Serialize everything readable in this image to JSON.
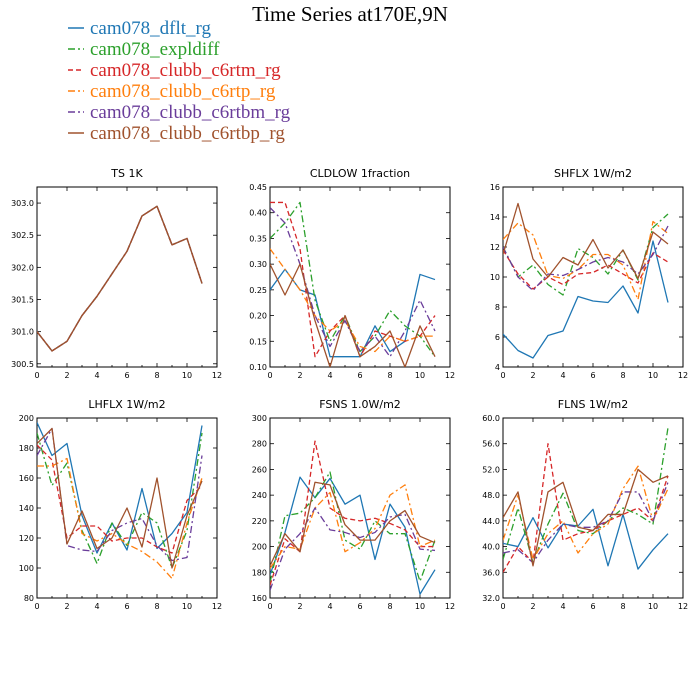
{
  "title": "Time Series at170E,9N",
  "colors": {
    "dflt": "#1f77b4",
    "expldiff": "#2ca02c",
    "c6rtm": "#d62728",
    "c6rtp": "#ff7f0e",
    "c6rtbm": "#6a3d9a",
    "c6rtbp": "#a0522d"
  },
  "legend": [
    {
      "name": "cam078_dflt_rg",
      "color": "#1f77b4",
      "dash": "solid"
    },
    {
      "name": "cam078_expldiff",
      "color": "#2ca02c",
      "dash": "dashdot"
    },
    {
      "name": "cam078_clubb_c6rtm_rg",
      "color": "#d62728",
      "dash": "dash"
    },
    {
      "name": "cam078_clubb_c6rtp_rg",
      "color": "#ff7f0e",
      "dash": "dashdot"
    },
    {
      "name": "cam078_clubb_c6rtbm_rg",
      "color": "#6a3d9a",
      "dash": "dashdot"
    },
    {
      "name": "cam078_clubb_c6rtbp_rg",
      "color": "#a0522d",
      "dash": "solid"
    }
  ],
  "chart_data": [
    {
      "type": "line",
      "title": "TS   1K",
      "x": [
        0,
        1,
        2,
        3,
        4,
        5,
        6,
        7,
        8,
        9,
        10,
        11
      ],
      "xlim": [
        0,
        12
      ],
      "xticks": [
        0,
        2,
        4,
        6,
        8,
        10,
        12
      ],
      "xtick_labels": [
        "0",
        "2",
        "4",
        "6",
        "8",
        "10",
        "12"
      ],
      "ylim": [
        300.45,
        303.25
      ],
      "yticks": [
        300.5,
        301.0,
        301.5,
        302.0,
        302.5,
        303.0
      ],
      "ytick_labels": [
        "300.5",
        "301.0",
        "301.5",
        "302.0",
        "302.5",
        "303.0"
      ],
      "series": [
        {
          "name": "cam078_dflt_rg",
          "values": [
            301.0,
            300.7,
            300.85,
            301.25,
            301.55,
            301.9,
            302.25,
            302.8,
            302.95,
            302.35,
            302.45,
            301.75
          ]
        },
        {
          "name": "cam078_expldiff",
          "values": [
            301.0,
            300.7,
            300.85,
            301.25,
            301.55,
            301.9,
            302.25,
            302.8,
            302.95,
            302.35,
            302.45,
            301.75
          ]
        },
        {
          "name": "cam078_clubb_c6rtm_rg",
          "values": [
            301.0,
            300.7,
            300.85,
            301.25,
            301.55,
            301.9,
            302.25,
            302.8,
            302.95,
            302.35,
            302.45,
            301.75
          ]
        },
        {
          "name": "cam078_clubb_c6rtp_rg",
          "values": [
            301.0,
            300.7,
            300.85,
            301.25,
            301.55,
            301.9,
            302.25,
            302.8,
            302.95,
            302.35,
            302.45,
            301.75
          ]
        },
        {
          "name": "cam078_clubb_c6rtbm_rg",
          "values": [
            301.0,
            300.7,
            300.85,
            301.25,
            301.55,
            301.9,
            302.25,
            302.8,
            302.95,
            302.35,
            302.45,
            301.75
          ]
        },
        {
          "name": "cam078_clubb_c6rtbp_rg",
          "values": [
            301.0,
            300.7,
            300.85,
            301.25,
            301.55,
            301.9,
            302.25,
            302.8,
            302.95,
            302.35,
            302.45,
            301.75
          ]
        }
      ]
    },
    {
      "type": "line",
      "title": "CLDLOW   1fraction",
      "x": [
        0,
        1,
        2,
        3,
        4,
        5,
        6,
        7,
        8,
        9,
        10,
        11
      ],
      "xlim": [
        0,
        12
      ],
      "xticks": [
        0,
        2,
        4,
        6,
        8,
        10,
        12
      ],
      "xtick_labels": [
        "0",
        "2",
        "4",
        "6",
        "8",
        "10",
        "12"
      ],
      "ylim": [
        0.1,
        0.45
      ],
      "yticks": [
        0.1,
        0.15,
        0.2,
        0.25,
        0.3,
        0.35,
        0.4,
        0.45
      ],
      "ytick_labels": [
        "0.10",
        "0.15",
        "0.20",
        "0.25",
        "0.30",
        "0.35",
        "0.40",
        "0.45"
      ],
      "series": [
        {
          "name": "cam078_dflt_rg",
          "values": [
            0.25,
            0.29,
            0.25,
            0.24,
            0.12,
            0.12,
            0.12,
            0.18,
            0.13,
            0.15,
            0.28,
            0.27
          ]
        },
        {
          "name": "cam078_expldiff",
          "values": [
            0.35,
            0.38,
            0.42,
            0.23,
            0.15,
            0.2,
            0.13,
            0.16,
            0.21,
            0.18,
            0.16,
            0.12
          ]
        },
        {
          "name": "cam078_clubb_c6rtm_rg",
          "values": [
            0.42,
            0.42,
            0.33,
            0.12,
            0.17,
            0.2,
            0.12,
            0.17,
            0.16,
            0.15,
            0.16,
            0.2
          ]
        },
        {
          "name": "cam078_clubb_c6rtp_rg",
          "values": [
            0.33,
            0.29,
            0.25,
            0.2,
            0.17,
            0.19,
            0.14,
            0.13,
            0.16,
            0.15,
            0.16,
            0.16
          ]
        },
        {
          "name": "cam078_clubb_c6rtbm_rg",
          "values": [
            0.41,
            0.38,
            0.3,
            0.2,
            0.14,
            0.19,
            0.13,
            0.16,
            0.12,
            0.17,
            0.23,
            0.17
          ]
        },
        {
          "name": "cam078_clubb_c6rtbp_rg",
          "values": [
            0.3,
            0.24,
            0.3,
            0.19,
            0.1,
            0.2,
            0.12,
            0.14,
            0.17,
            0.1,
            0.18,
            0.12
          ]
        }
      ]
    },
    {
      "type": "line",
      "title": "SHFLX   1W/m2",
      "x": [
        0,
        1,
        2,
        3,
        4,
        5,
        6,
        7,
        8,
        9,
        10,
        11
      ],
      "xlim": [
        0,
        12
      ],
      "xticks": [
        0,
        2,
        4,
        6,
        8,
        10,
        12
      ],
      "xtick_labels": [
        "0",
        "2",
        "4",
        "6",
        "8",
        "10",
        "12"
      ],
      "ylim": [
        4,
        16
      ],
      "yticks": [
        4,
        6,
        8,
        10,
        12,
        14,
        16
      ],
      "ytick_labels": [
        "4",
        "6",
        "8",
        "10",
        "12",
        "14",
        "16"
      ],
      "series": [
        {
          "name": "cam078_dflt_rg",
          "values": [
            6.2,
            5.1,
            4.6,
            6.1,
            6.4,
            8.7,
            8.4,
            8.3,
            9.4,
            7.6,
            12.4,
            8.3
          ]
        },
        {
          "name": "cam078_expldiff",
          "values": [
            12.0,
            10.0,
            10.8,
            9.5,
            8.8,
            11.9,
            11.3,
            10.2,
            11.8,
            9.8,
            13.3,
            14.2
          ]
        },
        {
          "name": "cam078_clubb_c6rtm_rg",
          "values": [
            11.8,
            10.2,
            9.2,
            10.0,
            9.5,
            10.2,
            10.3,
            10.8,
            10.2,
            9.6,
            11.6,
            11.0
          ]
        },
        {
          "name": "cam078_clubb_c6rtp_rg",
          "values": [
            12.5,
            13.6,
            12.8,
            10.1,
            9.9,
            10.5,
            11.5,
            11.5,
            10.8,
            8.5,
            13.7,
            12.9
          ]
        },
        {
          "name": "cam078_clubb_c6rtbm_rg",
          "values": [
            12.0,
            10.0,
            9.1,
            10.2,
            10.1,
            10.5,
            11.0,
            11.3,
            11.0,
            10.2,
            11.5,
            13.4
          ]
        },
        {
          "name": "cam078_clubb_c6rtbp_rg",
          "values": [
            11.5,
            14.9,
            11.2,
            10.0,
            11.3,
            10.8,
            12.5,
            10.6,
            11.8,
            9.9,
            13.0,
            12.2
          ]
        }
      ]
    },
    {
      "type": "line",
      "title": "LHFLX   1W/m2",
      "x": [
        0,
        1,
        2,
        3,
        4,
        5,
        6,
        7,
        8,
        9,
        10,
        11
      ],
      "xlim": [
        0,
        12
      ],
      "xticks": [
        0,
        2,
        4,
        6,
        8,
        10,
        12
      ],
      "xtick_labels": [
        "0",
        "2",
        "4",
        "6",
        "8",
        "10",
        "12"
      ],
      "ylim": [
        80,
        200
      ],
      "yticks": [
        80,
        100,
        120,
        140,
        160,
        180,
        200
      ],
      "ytick_labels": [
        "80",
        "100",
        "120",
        "140",
        "160",
        "180",
        "200"
      ],
      "series": [
        {
          "name": "cam078_dflt_rg",
          "values": [
            197,
            175,
            183,
            135,
            110,
            130,
            112,
            153,
            113,
            123,
            137,
            195
          ]
        },
        {
          "name": "cam078_expldiff",
          "values": [
            190,
            155,
            170,
            125,
            103,
            130,
            115,
            137,
            130,
            100,
            125,
            190
          ]
        },
        {
          "name": "cam078_clubb_c6rtm_rg",
          "values": [
            182,
            172,
            120,
            128,
            128,
            118,
            120,
            120,
            114,
            110,
            145,
            155
          ]
        },
        {
          "name": "cam078_clubb_c6rtp_rg",
          "values": [
            168,
            168,
            173,
            123,
            118,
            123,
            116,
            111,
            104,
            93,
            130,
            160
          ]
        },
        {
          "name": "cam078_clubb_c6rtbm_rg",
          "values": [
            175,
            193,
            115,
            112,
            111,
            125,
            130,
            133,
            115,
            105,
            107,
            175
          ]
        },
        {
          "name": "cam078_clubb_c6rtbp_rg",
          "values": [
            183,
            193,
            116,
            138,
            113,
            120,
            140,
            114,
            160,
            100,
            135,
            158
          ]
        }
      ]
    },
    {
      "type": "line",
      "title": "FSNS   1.0W/m2",
      "x": [
        0,
        1,
        2,
        3,
        4,
        5,
        6,
        7,
        8,
        9,
        10,
        11
      ],
      "xlim": [
        0,
        12
      ],
      "xticks": [
        0,
        2,
        4,
        6,
        8,
        10,
        12
      ],
      "xtick_labels": [
        "0",
        "2",
        "4",
        "6",
        "8",
        "10",
        "12"
      ],
      "ylim": [
        160,
        300
      ],
      "yticks": [
        160,
        180,
        200,
        220,
        240,
        260,
        280,
        300
      ],
      "ytick_labels": [
        "160",
        "180",
        "200",
        "220",
        "240",
        "260",
        "280",
        "300"
      ],
      "series": [
        {
          "name": "cam078_dflt_rg",
          "values": [
            178,
            211,
            254,
            238,
            253,
            233,
            240,
            190,
            233,
            215,
            163,
            182
          ]
        },
        {
          "name": "cam078_expldiff",
          "values": [
            172,
            224,
            226,
            238,
            258,
            205,
            198,
            220,
            210,
            210,
            173,
            205
          ]
        },
        {
          "name": "cam078_clubb_c6rtm_rg",
          "values": [
            170,
            206,
            196,
            282,
            230,
            222,
            220,
            222,
            218,
            213,
            200,
            200
          ]
        },
        {
          "name": "cam078_clubb_c6rtp_rg",
          "values": [
            183,
            200,
            198,
            230,
            242,
            196,
            203,
            214,
            240,
            248,
            200,
            205
          ]
        },
        {
          "name": "cam078_clubb_c6rtbm_rg",
          "values": [
            166,
            198,
            210,
            230,
            213,
            211,
            207,
            211,
            223,
            225,
            198,
            197
          ]
        },
        {
          "name": "cam078_clubb_c6rtbp_rg",
          "values": [
            185,
            210,
            196,
            250,
            248,
            217,
            205,
            205,
            220,
            228,
            208,
            203
          ]
        }
      ]
    },
    {
      "type": "line",
      "title": "FLNS   1W/m2",
      "x": [
        0,
        1,
        2,
        3,
        4,
        5,
        6,
        7,
        8,
        9,
        10,
        11
      ],
      "xlim": [
        0,
        12
      ],
      "xticks": [
        0,
        2,
        4,
        6,
        8,
        10,
        12
      ],
      "xtick_labels": [
        "0",
        "2",
        "4",
        "6",
        "8",
        "10",
        "12"
      ],
      "ylim": [
        32,
        60
      ],
      "yticks": [
        32,
        36,
        40,
        44,
        48,
        52,
        56,
        60
      ],
      "ytick_labels": [
        "32.0",
        "36.0",
        "40.0",
        "44.0",
        "48.0",
        "52.0",
        "56.0",
        "60.0"
      ],
      "series": [
        {
          "name": "cam078_dflt_rg",
          "values": [
            40.5,
            40.0,
            44.5,
            39.8,
            43.5,
            43.2,
            45.8,
            37.0,
            45.0,
            36.5,
            39.5,
            42.0
          ]
        },
        {
          "name": "cam078_expldiff",
          "values": [
            38.0,
            46.0,
            37.5,
            43.5,
            48.3,
            42.5,
            42.0,
            44.0,
            46.0,
            45.0,
            43.5,
            58.5
          ]
        },
        {
          "name": "cam078_clubb_c6rtm_rg",
          "values": [
            36.0,
            40.0,
            37.5,
            56.0,
            41.0,
            42.0,
            42.5,
            44.0,
            45.0,
            46.0,
            44.0,
            51.0
          ]
        },
        {
          "name": "cam078_clubb_c6rtp_rg",
          "values": [
            41.0,
            48.0,
            38.0,
            42.0,
            44.0,
            39.0,
            42.0,
            43.5,
            49.0,
            52.5,
            44.0,
            49.0
          ]
        },
        {
          "name": "cam078_clubb_c6rtbm_rg",
          "values": [
            39.0,
            39.5,
            37.5,
            41.0,
            43.5,
            43.0,
            43.0,
            44.0,
            48.5,
            48.5,
            44.0,
            50.0
          ]
        },
        {
          "name": "cam078_clubb_c6rtbp_rg",
          "values": [
            44.5,
            48.5,
            37.0,
            48.5,
            50.0,
            43.0,
            42.5,
            45.0,
            45.0,
            52.0,
            50.0,
            51.0
          ]
        }
      ]
    }
  ]
}
